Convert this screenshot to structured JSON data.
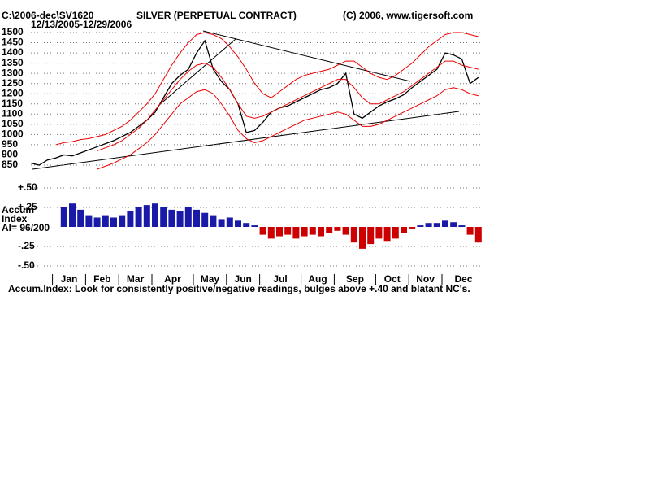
{
  "header": {
    "path": "C:\\2006-dec\\SV1620",
    "title": "SILVER (PERPETUAL CONTRACT)",
    "copyright": "(C) 2006, www.tigersoft.com",
    "date_range": "12/13/2005-12/29/2006"
  },
  "chart_data": [
    {
      "type": "line",
      "ylim": [
        850,
        1500
      ],
      "yticks": [
        850,
        900,
        950,
        1000,
        1050,
        1100,
        1150,
        1200,
        1250,
        1300,
        1350,
        1400,
        1450,
        1500
      ],
      "grid": true,
      "series": [
        {
          "color": "#000000",
          "values": [
            860,
            850,
            875,
            885,
            900,
            895,
            910,
            925,
            940,
            955,
            970,
            990,
            1010,
            1040,
            1070,
            1110,
            1180,
            1250,
            1290,
            1320,
            1400,
            1460,
            1320,
            1260,
            1220,
            1150,
            1010,
            1020,
            1060,
            1110,
            1130,
            1140,
            1160,
            1180,
            1200,
            1220,
            1230,
            1250,
            1300,
            1100,
            1080,
            1110,
            1140,
            1160,
            1175,
            1195,
            1230,
            1260,
            1290,
            1320,
            1400,
            1390,
            1370,
            1250,
            1280
          ]
        },
        {
          "color": "#ee0000",
          "values": [
            null,
            null,
            null,
            950,
            960,
            965,
            975,
            980,
            990,
            1000,
            1020,
            1040,
            1070,
            1110,
            1150,
            1200,
            1270,
            1340,
            1400,
            1450,
            1490,
            1500,
            1490,
            1470,
            1430,
            1380,
            1320,
            1250,
            1200,
            1180,
            1210,
            1240,
            1270,
            1290,
            1300,
            1310,
            1320,
            1340,
            1360,
            1360,
            1330,
            1300,
            1280,
            1270,
            1290,
            1320,
            1350,
            1390,
            1430,
            1460,
            1490,
            1500,
            1500,
            1490,
            1480
          ]
        },
        {
          "color": "#ee0000",
          "values": [
            null,
            null,
            null,
            null,
            null,
            null,
            null,
            null,
            920,
            935,
            950,
            970,
            1000,
            1030,
            1070,
            1120,
            1170,
            1220,
            1270,
            1310,
            1340,
            1350,
            1330,
            1280,
            1220,
            1150,
            1090,
            1080,
            1090,
            1110,
            1130,
            1150,
            1170,
            1190,
            1210,
            1230,
            1250,
            1270,
            1270,
            1230,
            1180,
            1150,
            1150,
            1170,
            1190,
            1210,
            1240,
            1270,
            1300,
            1330,
            1360,
            1360,
            1340,
            1330,
            1320
          ]
        },
        {
          "color": "#ee0000",
          "values": [
            null,
            null,
            null,
            null,
            null,
            null,
            null,
            null,
            830,
            845,
            860,
            880,
            900,
            930,
            960,
            1000,
            1050,
            1100,
            1150,
            1180,
            1210,
            1220,
            1200,
            1150,
            1090,
            1020,
            980,
            960,
            970,
            990,
            1010,
            1030,
            1050,
            1070,
            1080,
            1090,
            1100,
            1110,
            1100,
            1070,
            1040,
            1040,
            1050,
            1070,
            1090,
            1110,
            1130,
            1150,
            1170,
            1190,
            1220,
            1230,
            1220,
            1200,
            1190
          ]
        }
      ]
    },
    {
      "type": "bar",
      "labels": [
        "Accum",
        "Index",
        "AI= 96/200"
      ],
      "note": "Accum.Index: Look for consistently positive/negative readings, bulges above +.40 and blatant NC's.",
      "categories": [
        null,
        null,
        null,
        "Jan",
        null,
        null,
        null,
        "Feb",
        null,
        null,
        null,
        "Mar",
        null,
        null,
        null,
        "Apr",
        null,
        null,
        null,
        null,
        "May",
        null,
        null,
        null,
        "Jun",
        null,
        null,
        null,
        "Jul",
        null,
        null,
        null,
        null,
        "Aug",
        null,
        null,
        null,
        "Sep",
        null,
        null,
        null,
        null,
        "Oct",
        null,
        null,
        null,
        "Nov",
        null,
        null,
        null,
        "Dec",
        null,
        null,
        null,
        null
      ],
      "values": [
        null,
        null,
        null,
        null,
        0.25,
        0.3,
        0.22,
        0.15,
        0.12,
        0.15,
        0.12,
        0.15,
        0.2,
        0.25,
        0.28,
        0.3,
        0.25,
        0.22,
        0.2,
        0.25,
        0.22,
        0.18,
        0.15,
        0.1,
        0.12,
        0.08,
        0.05,
        0.02,
        -0.1,
        -0.15,
        -0.12,
        -0.1,
        -0.15,
        -0.12,
        -0.1,
        -0.12,
        -0.08,
        -0.05,
        -0.1,
        -0.2,
        -0.28,
        -0.22,
        -0.15,
        -0.18,
        -0.15,
        -0.08,
        -0.02,
        0.02,
        0.05,
        0.05,
        0.08,
        0.06,
        0.02,
        -0.1,
        -0.2
      ],
      "positive_color": "#1a1aa8",
      "negative_color": "#cc0000",
      "ylim": [
        -0.5,
        0.5
      ],
      "grid": true,
      "yticks": [
        {
          "value": 0.5,
          "label": "+.50"
        },
        {
          "value": 0.25,
          "label": "+.25"
        },
        {
          "value": -0.25,
          "label": "-.25"
        },
        {
          "value": -0.5,
          "label": "-.50"
        }
      ]
    }
  ]
}
